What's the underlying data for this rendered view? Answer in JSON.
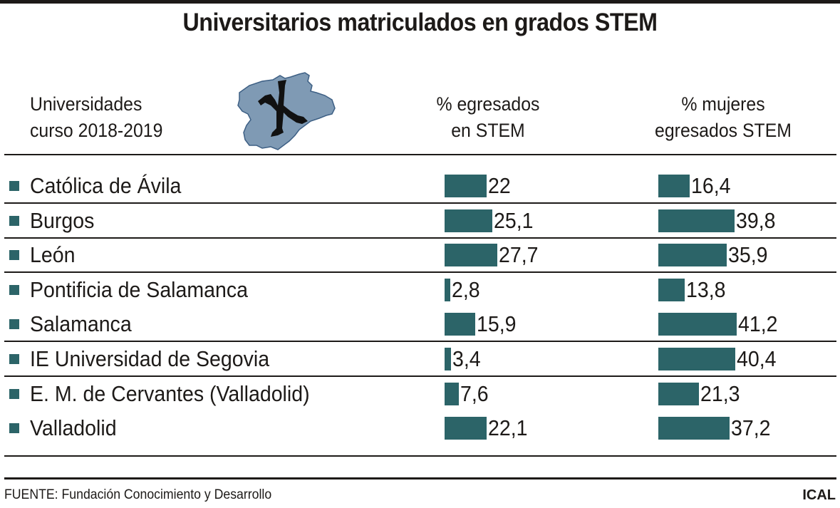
{
  "title": "Universitarios matriculados en grados STEM",
  "header": {
    "universities_line1": "Universidades",
    "universities_line2": "curso 2018-2019",
    "col1_line1": "% egresados",
    "col1_line2": "en STEM",
    "col2_line1": "% mujeres",
    "col2_line2": "egresados STEM",
    "map_icon": "castilla-y-leon-map-icon"
  },
  "colors": {
    "bar": "#2c6468",
    "map_fill": "#7f9ab4",
    "map_stroke": "#3d5f84",
    "text": "#1d1a18"
  },
  "chart_data": {
    "type": "table",
    "title": "Universitarios matriculados en grados STEM",
    "subtitle": "Universidades curso 2018-2019",
    "categories": [
      "Católica de Ávila",
      "Burgos",
      "León",
      "Pontificia de Salamanca",
      "Salamanca",
      "IE Universidad de Segovia",
      "E. M. de Cervantes (Valladolid)",
      "Valladolid"
    ],
    "series": [
      {
        "name": "% egresados en STEM",
        "values": [
          22,
          25.1,
          27.7,
          2.8,
          15.9,
          3.4,
          7.6,
          22.1
        ],
        "labels": [
          "22",
          "25,1",
          "27,7",
          "2,8",
          "15,9",
          "3,4",
          "7,6",
          "22,1"
        ]
      },
      {
        "name": "% mujeres egresados STEM",
        "values": [
          16.4,
          39.8,
          35.9,
          13.8,
          41.2,
          40.4,
          21.3,
          37.2
        ],
        "labels": [
          "16,4",
          "39,8",
          "35,9",
          "13,8",
          "41,2",
          "40,4",
          "21,3",
          "37,2"
        ]
      }
    ],
    "separators_after": [
      0,
      1,
      2,
      4,
      5
    ]
  },
  "footer": {
    "source": "FUENTE: Fundación Conocimiento y Desarrollo",
    "brand": "ICAL"
  }
}
